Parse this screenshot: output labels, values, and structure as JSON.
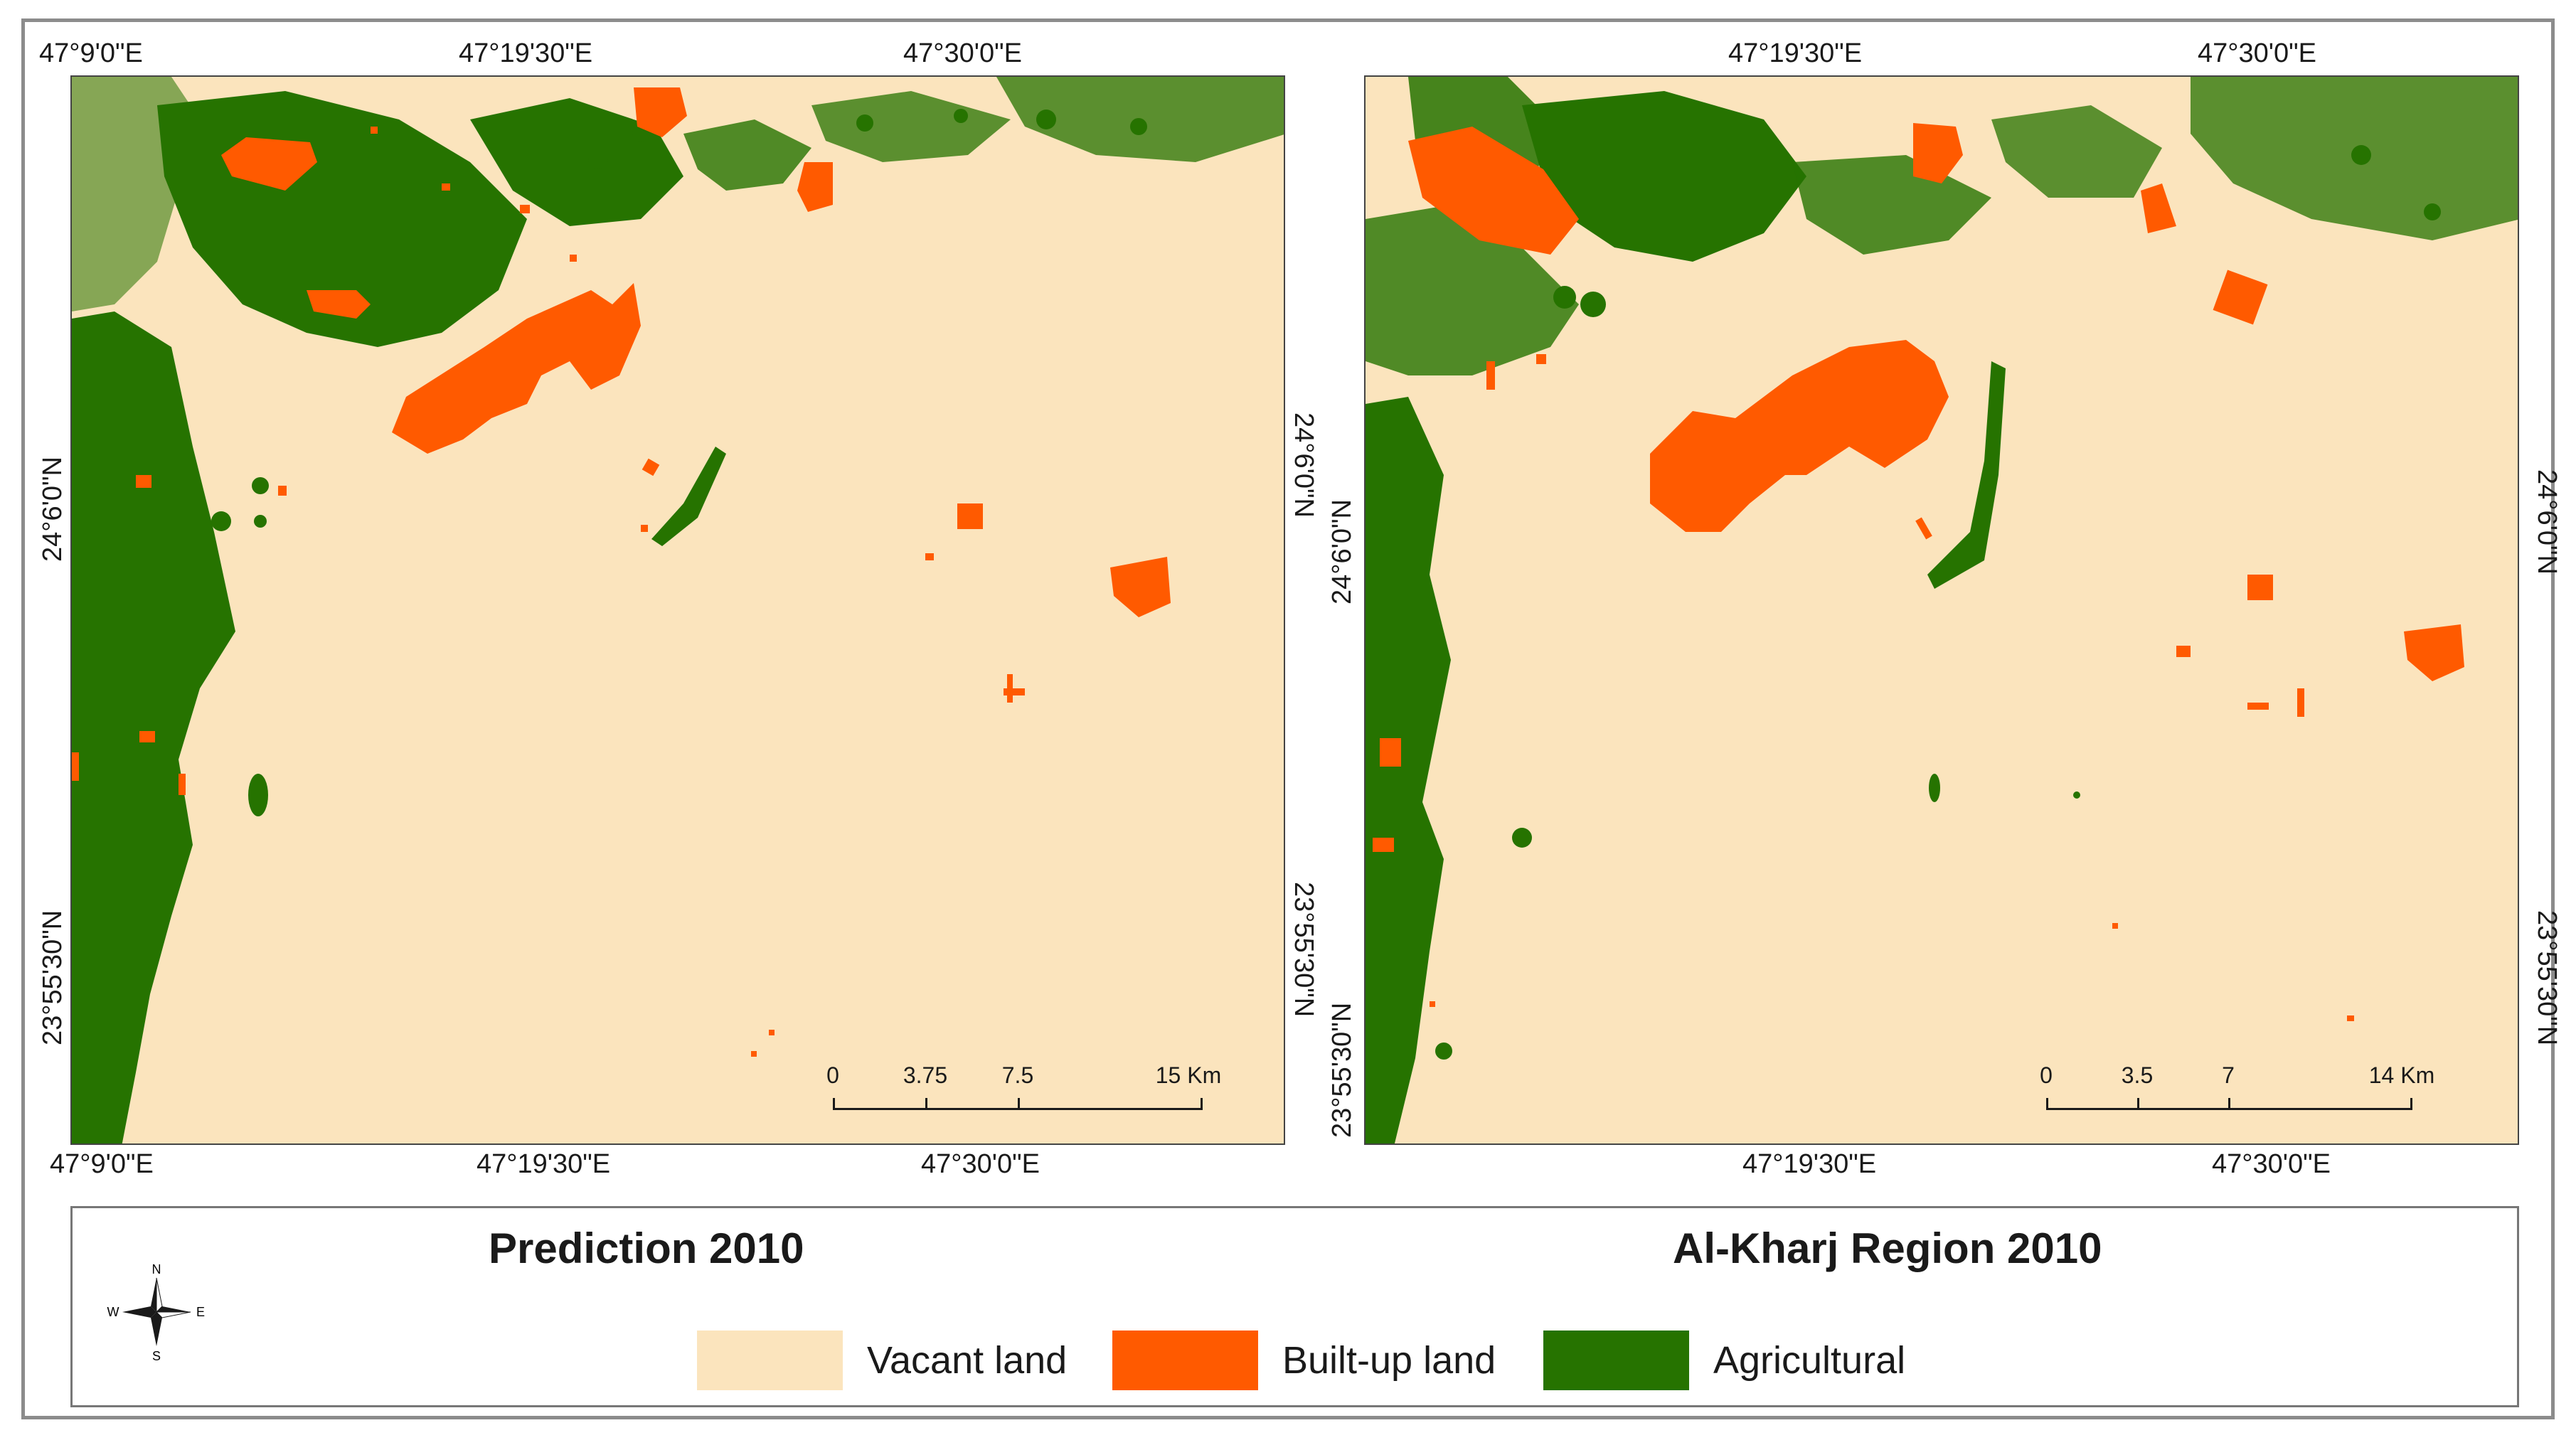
{
  "left_map": {
    "title": "Prediction 2010",
    "top_ticks": [
      "47°9'0\"E",
      "47°19'30\"E",
      "47°30'0\"E"
    ],
    "bottom_ticks": [
      "47°9'0\"E",
      "47°19'30\"E",
      "47°30'0\"E"
    ],
    "left_ticks": [
      "24°6'0\"N",
      "23°55'30\"N"
    ],
    "right_ticks": [
      "24°6'0\"N",
      "23°55'30\"N"
    ],
    "scale": {
      "labels": [
        "0",
        "3.75",
        "7.5",
        "15 Km"
      ]
    }
  },
  "right_map": {
    "title": "Al-Kharj Region 2010",
    "top_ticks": [
      "47°19'30\"E",
      "47°30'0\"E"
    ],
    "bottom_ticks": [
      "47°19'30\"E",
      "47°30'0\"E"
    ],
    "left_ticks": [
      "24°6'0\"N",
      "23°55'30\"N"
    ],
    "right_ticks": [
      "24°6'0\"N",
      "23°55'30\"N"
    ],
    "scale": {
      "labels": [
        "0",
        "3.5",
        "7",
        "14 Km"
      ]
    }
  },
  "north_arrow": {
    "n": "N",
    "s": "S",
    "e": "E",
    "w": "W"
  },
  "legend": [
    {
      "label": "Vacant land",
      "color": "#fbe4bd"
    },
    {
      "label": "Built-up land",
      "color": "#ff5a00"
    },
    {
      "label": "Agricultural",
      "color": "#267300"
    }
  ],
  "colors": {
    "vacant": "#fbe4bd",
    "builtup": "#ff5a00",
    "agricultural": "#267300"
  }
}
